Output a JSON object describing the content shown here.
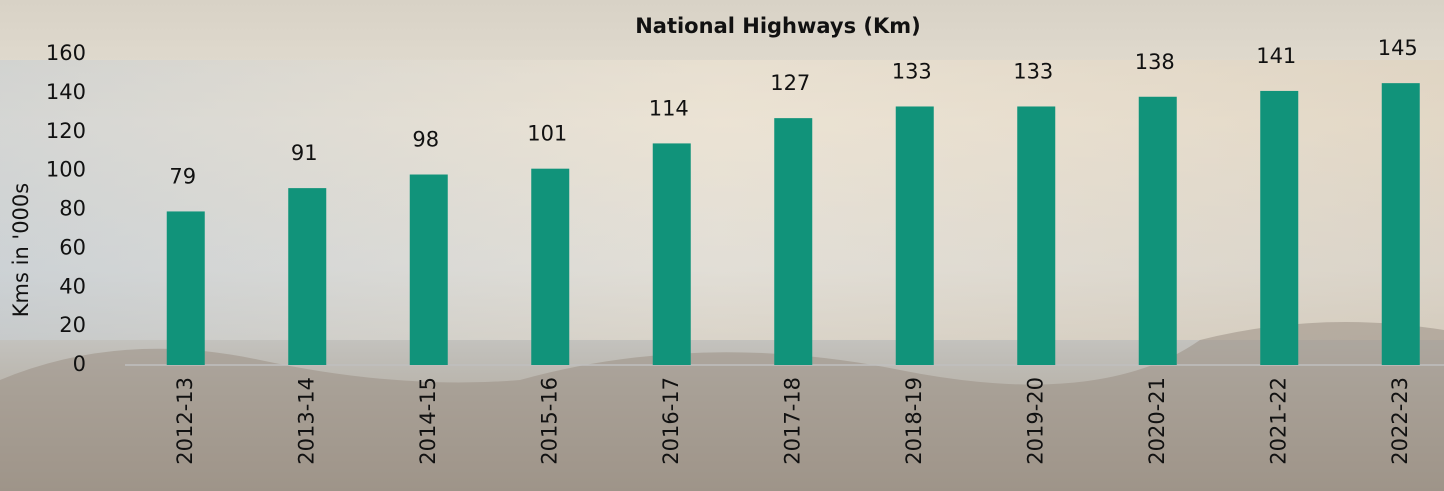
{
  "chart_data": {
    "type": "bar",
    "title": "National Highways (Km)",
    "y_label": "Kms in '000s",
    "categories": [
      "2012-13",
      "2013-14",
      "2014-15",
      "2015-16",
      "2016-17",
      "2017-18",
      "2018-19",
      "2019-20",
      "2020-21",
      "2021-22",
      "2022-23"
    ],
    "values": [
      79,
      91,
      98,
      101,
      114,
      127,
      133,
      133,
      138,
      141,
      145
    ],
    "color": "#11937a",
    "ylim": [
      0,
      160
    ],
    "yticks": [
      0,
      20,
      40,
      60,
      80,
      100,
      120,
      140,
      160
    ],
    "grid": false
  }
}
